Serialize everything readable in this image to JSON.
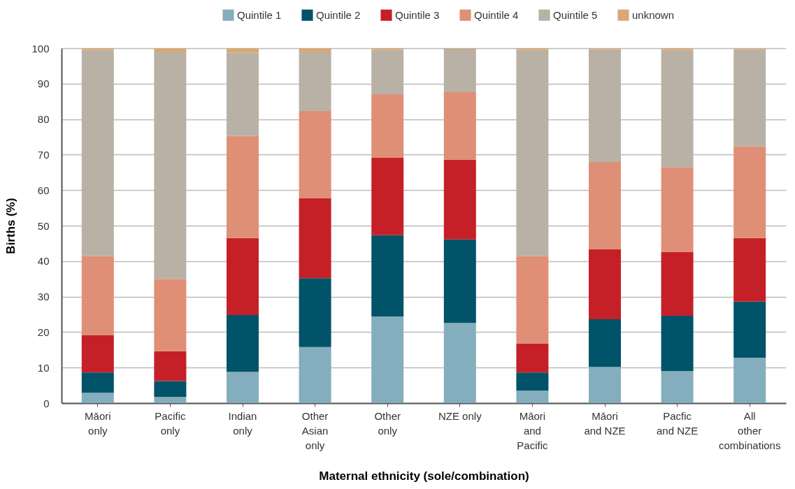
{
  "chart_data": {
    "type": "bar",
    "stacked": true,
    "xlabel": "Maternal ethnicity (sole/combination)",
    "ylabel": "Births (%)",
    "categories": [
      "Māori only",
      "Pacific only",
      "Indian only",
      "Other Asian only",
      "Other only",
      "NZE only",
      "Māori and Pacific",
      "Māori and NZE",
      "Pacfic and NZE",
      "All other combinations"
    ],
    "series": [
      {
        "name": "Quintile 1",
        "color": "#84adbd",
        "values": [
          2.9,
          1.7,
          8.8,
          15.8,
          24.4,
          22.6,
          3.5,
          10.2,
          9.0,
          12.8
        ]
      },
      {
        "name": "Quintile 2",
        "color": "#005368",
        "values": [
          5.7,
          4.5,
          16.0,
          19.4,
          22.9,
          23.5,
          5.1,
          13.4,
          15.6,
          15.8
        ]
      },
      {
        "name": "Quintile 3",
        "color": "#c52027",
        "values": [
          10.6,
          8.4,
          21.7,
          22.5,
          21.8,
          22.4,
          8.2,
          19.8,
          18.0,
          17.9
        ]
      },
      {
        "name": "Quintile 4",
        "color": "#df8f76",
        "values": [
          22.2,
          20.4,
          28.8,
          24.6,
          17.9,
          19.1,
          24.6,
          24.5,
          23.9,
          25.8
        ]
      },
      {
        "name": "Quintile 5",
        "color": "#b9b1a6",
        "values": [
          58.1,
          63.8,
          23.4,
          16.5,
          12.5,
          12.2,
          58.1,
          31.8,
          33.0,
          27.4
        ]
      },
      {
        "name": "unknown",
        "color": "#d8a878",
        "values": [
          0.5,
          1.2,
          1.3,
          1.2,
          0.5,
          0.2,
          0.5,
          0.3,
          0.5,
          0.3
        ]
      }
    ],
    "ylim": [
      0,
      100
    ],
    "yticks": [
      0,
      10,
      20,
      30,
      40,
      50,
      60,
      70,
      80,
      90,
      100
    ],
    "grid": "y",
    "legend": "top right"
  }
}
